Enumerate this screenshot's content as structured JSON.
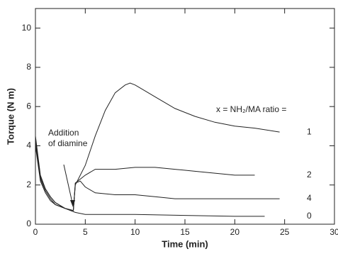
{
  "chart_data": {
    "type": "line",
    "xlabel": "Time (min)",
    "ylabel": "Torque (N m)",
    "annotations": [
      "x = NH₂/MA ratio =",
      "Addition",
      "of diamine"
    ],
    "xlim": [
      0,
      30
    ],
    "xticks": [
      0,
      5,
      10,
      15,
      20,
      25,
      30
    ],
    "ylim": [
      0,
      11
    ],
    "yticks": [
      0,
      2,
      4,
      6,
      8,
      10
    ],
    "color": "#222222",
    "series": [
      {
        "name": "1",
        "x": [
          0,
          0.5,
          1,
          1.5,
          2,
          3,
          3.8,
          4,
          5,
          6,
          7,
          8,
          9,
          9.5,
          10,
          12,
          14,
          16,
          18,
          20,
          22,
          24.5
        ],
        "values": [
          4.5,
          2.5,
          1.8,
          1.4,
          1.1,
          0.8,
          0.7,
          2.0,
          3.0,
          4.5,
          5.8,
          6.7,
          7.1,
          7.2,
          7.1,
          6.5,
          5.9,
          5.5,
          5.2,
          5.0,
          4.9,
          4.7
        ]
      },
      {
        "name": "2",
        "x": [
          0,
          0.5,
          1,
          1.5,
          2,
          3,
          3.8,
          4,
          5,
          6,
          8,
          10,
          12,
          14,
          16,
          18,
          20,
          22
        ],
        "values": [
          4.3,
          2.4,
          1.8,
          1.4,
          1.1,
          0.8,
          0.7,
          2.1,
          2.5,
          2.8,
          2.8,
          2.9,
          2.9,
          2.8,
          2.7,
          2.6,
          2.5,
          2.5
        ]
      },
      {
        "name": "4",
        "x": [
          0,
          0.5,
          1,
          1.5,
          2,
          3,
          3.8,
          4,
          4.5,
          5,
          6,
          8,
          10,
          12,
          14,
          16,
          18,
          20,
          22,
          24.5
        ],
        "values": [
          4.2,
          2.3,
          1.7,
          1.3,
          1.0,
          0.8,
          0.7,
          2.1,
          2.2,
          1.9,
          1.6,
          1.5,
          1.5,
          1.4,
          1.3,
          1.3,
          1.3,
          1.3,
          1.3,
          1.3
        ]
      },
      {
        "name": "0",
        "x": [
          0,
          0.5,
          1,
          1.5,
          2,
          3,
          4,
          5,
          10,
          15,
          20,
          23
        ],
        "values": [
          4.0,
          2.2,
          1.6,
          1.2,
          1.0,
          0.8,
          0.6,
          0.5,
          0.5,
          0.45,
          0.4,
          0.4
        ]
      }
    ]
  }
}
